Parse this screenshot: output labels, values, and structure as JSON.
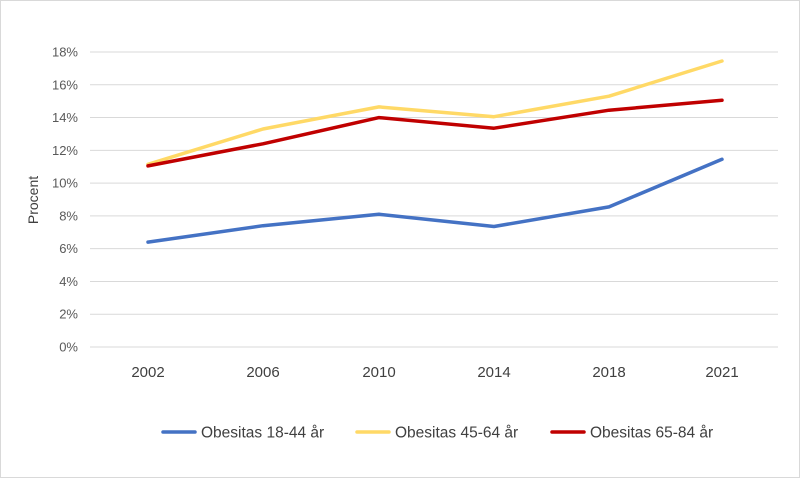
{
  "chart_data": {
    "type": "line",
    "title": "",
    "xlabel": "",
    "ylabel": "Procent",
    "categories": [
      "2002",
      "2006",
      "2010",
      "2014",
      "2018",
      "2021"
    ],
    "ylim": [
      0,
      18
    ],
    "yticks": [
      "0%",
      "2%",
      "4%",
      "6%",
      "8%",
      "10%",
      "12%",
      "14%",
      "16%",
      "18%"
    ],
    "grid": "horizontal",
    "legend_position": "bottom",
    "series": [
      {
        "name": "Obesitas 18-44 år",
        "color": "#4472c4",
        "values": [
          6.4,
          7.4,
          8.1,
          7.35,
          8.55,
          11.45
        ]
      },
      {
        "name": "Obesitas 45-64 år",
        "color": "#ffd966",
        "values": [
          11.15,
          13.3,
          14.65,
          14.05,
          15.3,
          17.45
        ]
      },
      {
        "name": "Obesitas 65-84 år",
        "color": "#c00000",
        "values": [
          11.05,
          12.4,
          14.0,
          13.35,
          14.45,
          15.05
        ]
      }
    ]
  }
}
